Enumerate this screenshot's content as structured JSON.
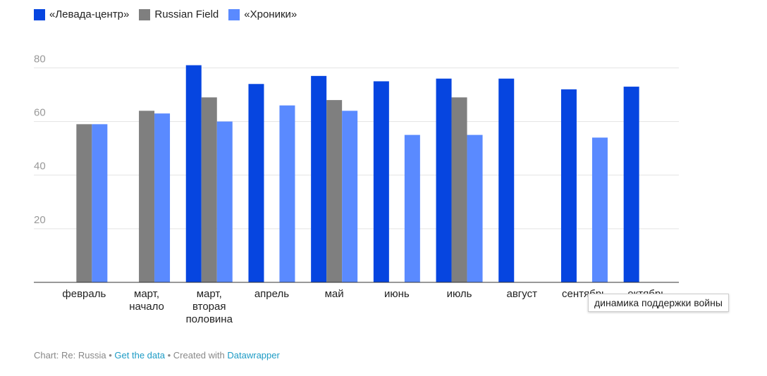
{
  "chart_data": {
    "type": "bar",
    "categories": [
      "февраль",
      "март, начало",
      "март, вторая половина",
      "апрель",
      "май",
      "июнь",
      "июль",
      "август",
      "сентябрь",
      "октябрь"
    ],
    "series": [
      {
        "name": "«Левада-центр»",
        "color": "#0645e0",
        "values": [
          null,
          null,
          81,
          74,
          77,
          75,
          76,
          76,
          72,
          73
        ]
      },
      {
        "name": "Russian Field",
        "color": "#7f7f7f",
        "values": [
          59,
          64,
          69,
          null,
          68,
          null,
          69,
          null,
          null,
          null
        ]
      },
      {
        "name": "«Хроники»",
        "color": "#5a8aff",
        "values": [
          59,
          63,
          60,
          66,
          64,
          55,
          55,
          null,
          54,
          null
        ]
      }
    ],
    "ylim": [
      0,
      83
    ],
    "yticks": [
      20,
      40,
      60,
      80
    ],
    "grid": true,
    "tooltip": "динамика поддержки войны",
    "footer": {
      "source": "Chart: Re: Russia",
      "separator": "•",
      "get_data": "Get the data",
      "created_with": "Created with",
      "tool": "Datawrapper"
    }
  }
}
